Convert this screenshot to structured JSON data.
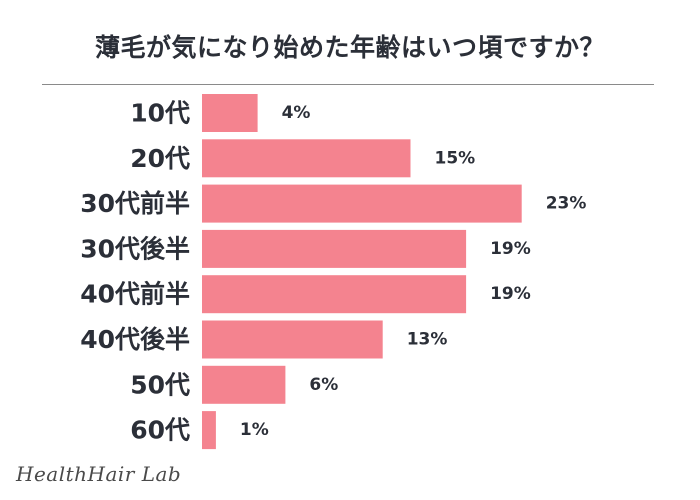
{
  "chart_data": {
    "type": "bar",
    "orientation": "horizontal",
    "title": "薄毛が気になり始めた年齢はいつ頃ですか？",
    "categories": [
      "10代",
      "20代",
      "30代前半",
      "30代後半",
      "40代前半",
      "40代後半",
      "50代",
      "60代"
    ],
    "values": [
      4,
      15,
      23,
      19,
      19,
      13,
      6,
      1
    ],
    "value_labels": [
      "4%",
      "15%",
      "23%",
      "19%",
      "19%",
      "13%",
      "6%",
      "1%"
    ],
    "unit": "%",
    "bar_color": "#f4838f",
    "grid": false,
    "legend": "none"
  },
  "brand": "HealthHair Lab"
}
